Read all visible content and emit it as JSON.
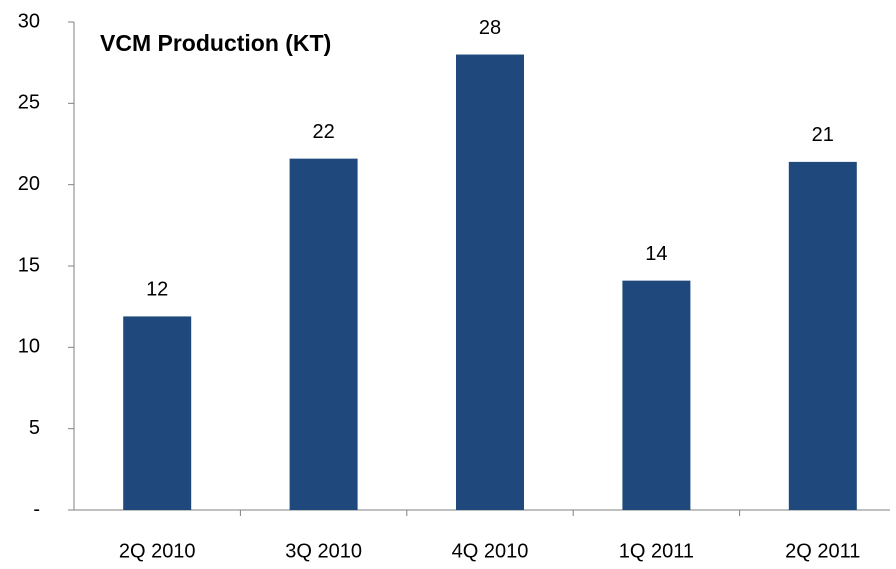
{
  "chart_data": {
    "type": "bar",
    "title": "VCM Production (KT)",
    "categories": [
      "2Q 2010",
      "3Q 2010",
      "4Q 2010",
      "1Q 2011",
      "2Q 2011"
    ],
    "values": [
      11.9,
      21.6,
      28,
      14.1,
      21.4
    ],
    "value_labels": [
      "12",
      "22",
      "28",
      "14",
      "21"
    ],
    "color": "#1f497d",
    "ylim": [
      0,
      30
    ],
    "yticks": [
      {
        "value": 0,
        "label": "-"
      },
      5,
      10,
      15,
      20,
      25,
      30
    ],
    "grid": false
  }
}
